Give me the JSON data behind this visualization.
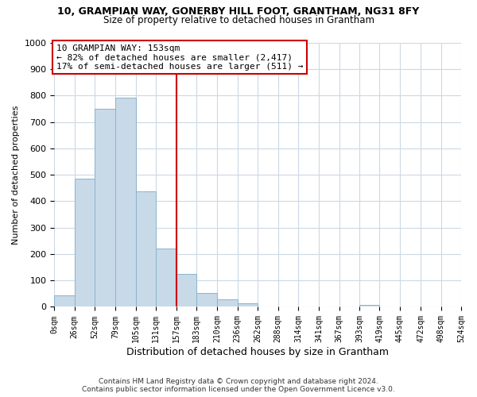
{
  "title_line1": "10, GRAMPIAN WAY, GONERBY HILL FOOT, GRANTHAM, NG31 8FY",
  "title_line2": "Size of property relative to detached houses in Grantham",
  "xlabel": "Distribution of detached houses by size in Grantham",
  "ylabel": "Number of detached properties",
  "bin_edges": [
    0,
    26,
    52,
    79,
    105,
    131,
    157,
    183,
    210,
    236,
    262,
    288,
    314,
    341,
    367,
    393,
    419,
    445,
    472,
    498,
    524
  ],
  "bin_counts": [
    44,
    485,
    750,
    793,
    438,
    220,
    125,
    52,
    28,
    13,
    0,
    0,
    0,
    0,
    0,
    8,
    0,
    0,
    0,
    0
  ],
  "bar_color": "#c8d9e8",
  "bar_edgecolor": "#8ab4cc",
  "vline_x": 157,
  "vline_color": "#cc0000",
  "annotation_text": "10 GRAMPIAN WAY: 153sqm\n← 82% of detached houses are smaller (2,417)\n17% of semi-detached houses are larger (511) →",
  "annotation_box_color": "#ffffff",
  "annotation_box_edgecolor": "#cc0000",
  "ylim": [
    0,
    1000
  ],
  "yticks": [
    0,
    100,
    200,
    300,
    400,
    500,
    600,
    700,
    800,
    900,
    1000
  ],
  "tick_labels": [
    "0sqm",
    "26sqm",
    "52sqm",
    "79sqm",
    "105sqm",
    "131sqm",
    "157sqm",
    "183sqm",
    "210sqm",
    "236sqm",
    "262sqm",
    "288sqm",
    "314sqm",
    "341sqm",
    "367sqm",
    "393sqm",
    "419sqm",
    "445sqm",
    "472sqm",
    "498sqm",
    "524sqm"
  ],
  "footer_line1": "Contains HM Land Registry data © Crown copyright and database right 2024.",
  "footer_line2": "Contains public sector information licensed under the Open Government Licence v3.0.",
  "background_color": "#ffffff",
  "grid_color": "#ccd9e5"
}
